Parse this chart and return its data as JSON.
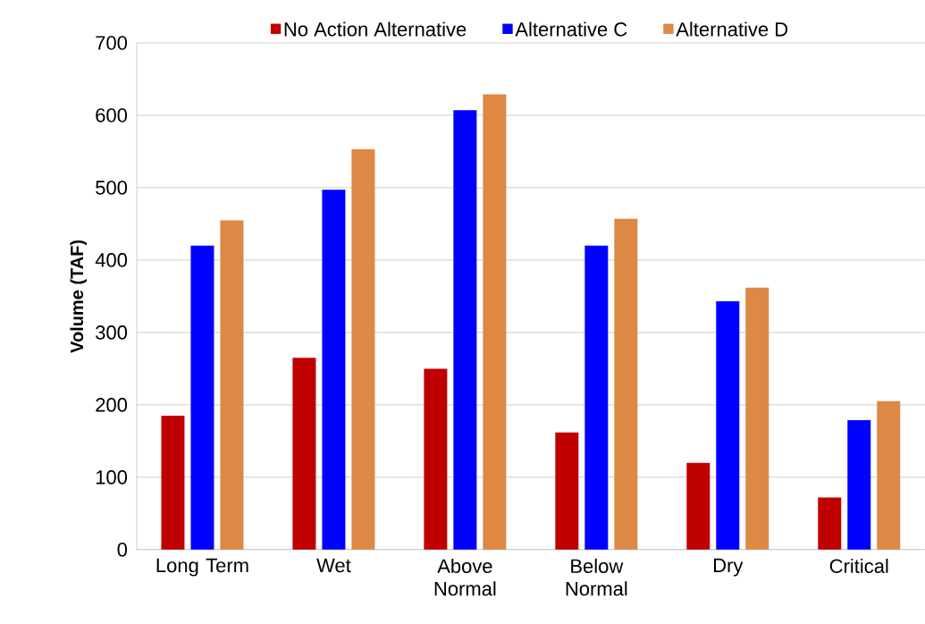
{
  "chart_data": {
    "type": "bar",
    "ylabel": "Volume (TAF)",
    "categories": [
      "Long Term",
      "Wet",
      "Above Normal",
      "Below Normal",
      "Dry",
      "Critical"
    ],
    "series": [
      {
        "name": "No Action Alternative",
        "color": "#c00000",
        "values": [
          185,
          265,
          250,
          162,
          120,
          72
        ]
      },
      {
        "name": "Alternative C",
        "color": "#0000ff",
        "values": [
          420,
          497,
          607,
          420,
          343,
          179
        ]
      },
      {
        "name": "Alternative D",
        "color": "#dd8844",
        "values": [
          455,
          553,
          629,
          457,
          362,
          205
        ]
      }
    ],
    "ylim": [
      0,
      700
    ],
    "yticks": [
      0,
      100,
      200,
      300,
      400,
      500,
      600,
      700
    ],
    "grid": "y",
    "legend": "top"
  }
}
